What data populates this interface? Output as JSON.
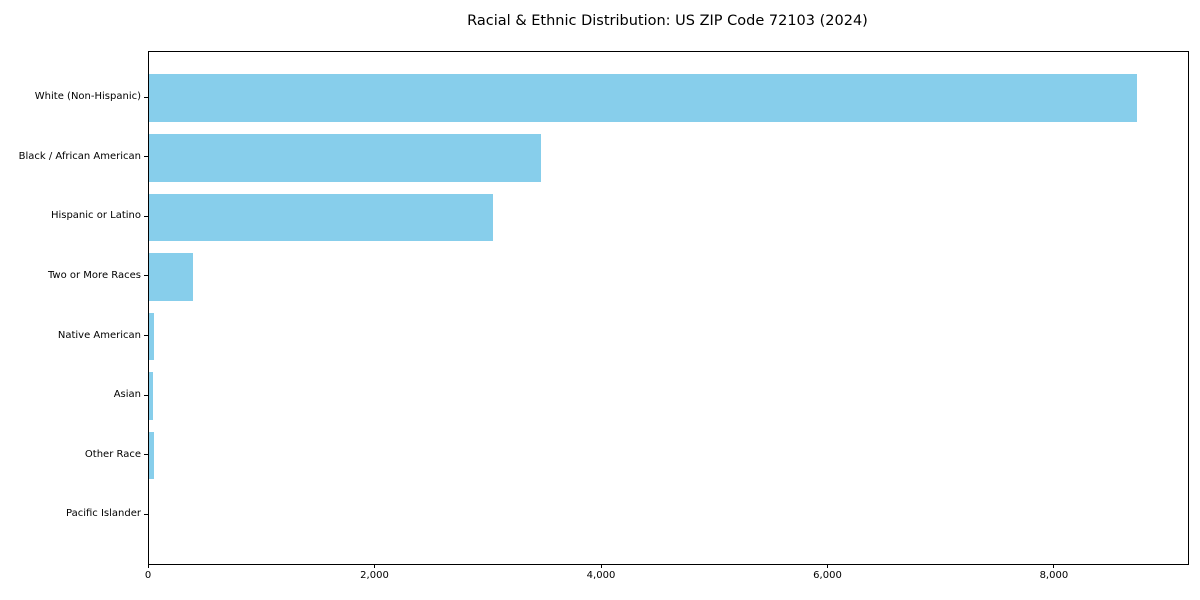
{
  "title": "Racial & Ethnic Distribution: US ZIP Code 72103 (2024)",
  "colors": {
    "bar": "#87CEEB",
    "axis": "#000000",
    "text": "#000000",
    "background": "#ffffff"
  },
  "chart_data": {
    "type": "bar",
    "orientation": "horizontal",
    "title": "Racial & Ethnic Distribution: US ZIP Code 72103 (2024)",
    "xlabel": "",
    "ylabel": "",
    "categories": [
      "White (Non-Hispanic)",
      "Black / African American",
      "Hispanic or Latino",
      "Two or More Races",
      "Native American",
      "Asian",
      "Other Race",
      "Pacific Islander"
    ],
    "values": [
      8720,
      3460,
      3040,
      390,
      45,
      35,
      40,
      0
    ],
    "x_ticks": [
      0,
      2000,
      4000,
      6000,
      8000
    ],
    "x_tick_labels": [
      "0",
      "2,000",
      "4,000",
      "6,000",
      "8,000"
    ],
    "xlim": [
      0,
      9175
    ],
    "grid": false,
    "legend": null,
    "bar_color": "#87CEEB"
  }
}
